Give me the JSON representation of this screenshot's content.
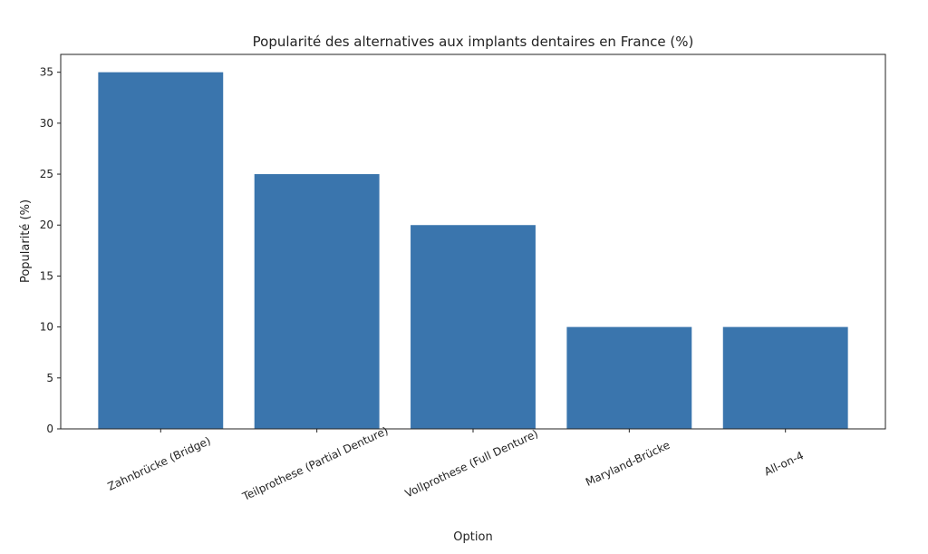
{
  "chart_data": {
    "type": "bar",
    "title": "Popularité des alternatives aux implants dentaires en France (%)",
    "xlabel": "Option",
    "ylabel": "Popularité (%)",
    "categories": [
      "Zahnbrücke (Bridge)",
      "Teilprothese (Partial Denture)",
      "Vollprothese (Full Denture)",
      "Maryland-Brücke",
      "All-on-4"
    ],
    "values": [
      35,
      25,
      20,
      10,
      10
    ],
    "ylim": [
      0,
      36.75
    ],
    "yticks": [
      0,
      5,
      10,
      15,
      20,
      25,
      30,
      35
    ],
    "grid": false,
    "bar_color": "#3a75ad",
    "xtick_rotation_deg": 25
  }
}
